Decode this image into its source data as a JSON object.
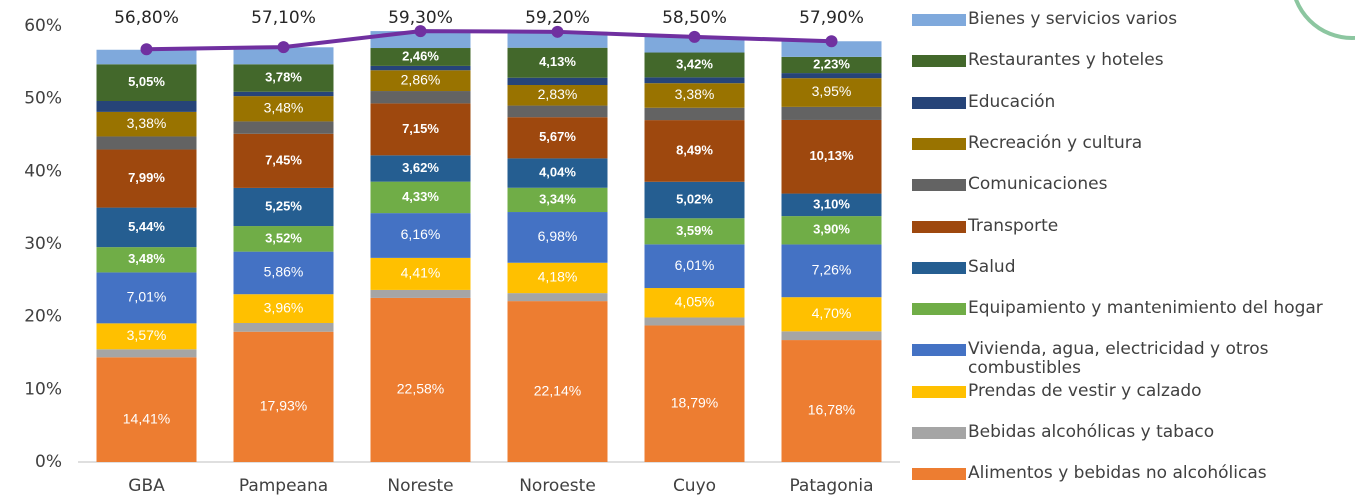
{
  "chart_data": {
    "type": "stacked_bar",
    "categories": [
      "GBA",
      "Pampeana",
      "Noreste",
      "Noroeste",
      "Cuyo",
      "Patagonia"
    ],
    "ylim": [
      0,
      60
    ],
    "yticks": [
      {
        "value": 0,
        "label": "0%"
      },
      {
        "value": 10,
        "label": "10%"
      },
      {
        "value": 20,
        "label": "20%"
      },
      {
        "value": 30,
        "label": "30%"
      },
      {
        "value": 40,
        "label": "40%"
      },
      {
        "value": 50,
        "label": "50%"
      },
      {
        "value": 60,
        "label": "60%"
      }
    ],
    "grid": false,
    "legend": "right",
    "series": [
      {
        "name": "Alimentos y bebidas no alcohólicas",
        "color": "#ed7d31",
        "values": [
          14.41,
          17.93,
          22.58,
          22.14,
          18.79,
          16.78
        ],
        "value_labels": [
          "14,41%",
          "17,93%",
          "22,58%",
          "22,14%",
          "18,79%",
          "16,78%"
        ]
      },
      {
        "name": "Bebidas alcohólicas y tabaco",
        "color": "#a5a5a5",
        "values": [
          1.1,
          1.2,
          1.1,
          1.1,
          1.1,
          1.2
        ]
      },
      {
        "name": "Prendas de vestir y calzado",
        "color": "#ffc000",
        "values": [
          3.57,
          3.96,
          4.41,
          4.18,
          4.05,
          4.7
        ],
        "value_labels": [
          "3,57%",
          "3,96%",
          "4,41%",
          "4,18%",
          "4,05%",
          "4,70%"
        ]
      },
      {
        "name": "Vivienda, agua, electricidad y otros combustibles",
        "color": "#4472c4",
        "values": [
          7.01,
          5.86,
          6.16,
          6.98,
          6.01,
          7.26
        ],
        "value_labels": [
          "7,01%",
          "5,86%",
          "6,16%",
          "6,98%",
          "6,01%",
          "7,26%"
        ]
      },
      {
        "name": "Equipamiento y mantenimiento del hogar",
        "color": "#70ad47",
        "values": [
          3.48,
          3.52,
          4.33,
          3.34,
          3.59,
          3.9
        ],
        "value_labels": [
          "3,48%",
          "3,52%",
          "4,33%",
          "3,34%",
          "3,59%",
          "3,90%"
        ]
      },
      {
        "name": "Salud",
        "color": "#255e91",
        "values": [
          5.44,
          5.25,
          3.62,
          4.04,
          5.02,
          3.1
        ],
        "value_labels": [
          "5,44%",
          "5,25%",
          "3,62%",
          "4,04%",
          "5,02%",
          "3,10%"
        ]
      },
      {
        "name": "Transporte",
        "color": "#9e480e",
        "values": [
          7.99,
          7.45,
          7.15,
          5.67,
          8.49,
          10.13
        ],
        "value_labels": [
          "7,99%",
          "7,45%",
          "7,15%",
          "5,67%",
          "8,49%",
          "10,13%"
        ]
      },
      {
        "name": "Comunicaciones",
        "color": "#636363",
        "values": [
          1.8,
          1.7,
          1.7,
          1.6,
          1.7,
          1.8
        ]
      },
      {
        "name": "Recreación y cultura",
        "color": "#997300",
        "values": [
          3.38,
          3.48,
          2.86,
          2.83,
          3.38,
          3.95
        ],
        "value_labels": [
          "3,38%",
          "3,48%",
          "2,86%",
          "2,83%",
          "3,38%",
          "3,95%"
        ]
      },
      {
        "name": "Educación",
        "color": "#264478",
        "values": [
          1.5,
          0.6,
          0.6,
          1.0,
          0.8,
          0.7
        ]
      },
      {
        "name": "Restaurantes y hoteles",
        "color": "#43682b",
        "values": [
          5.05,
          3.78,
          2.46,
          4.13,
          3.42,
          2.23
        ],
        "value_labels": [
          "5,05%",
          "3,78%",
          "2,46%",
          "4,13%",
          "3,42%",
          "2,23%"
        ]
      },
      {
        "name": "Bienes y servicios varios",
        "color": "#7fa9dc",
        "values": [
          2.0,
          2.34,
          2.33,
          2.19,
          2.15,
          2.15
        ]
      }
    ],
    "line": {
      "color": "#7030a0",
      "values": [
        56.8,
        57.1,
        59.3,
        59.2,
        58.5,
        57.9
      ],
      "value_labels": [
        "56,80%",
        "57,10%",
        "59,30%",
        "59,20%",
        "58,50%",
        "57,90%"
      ]
    }
  }
}
